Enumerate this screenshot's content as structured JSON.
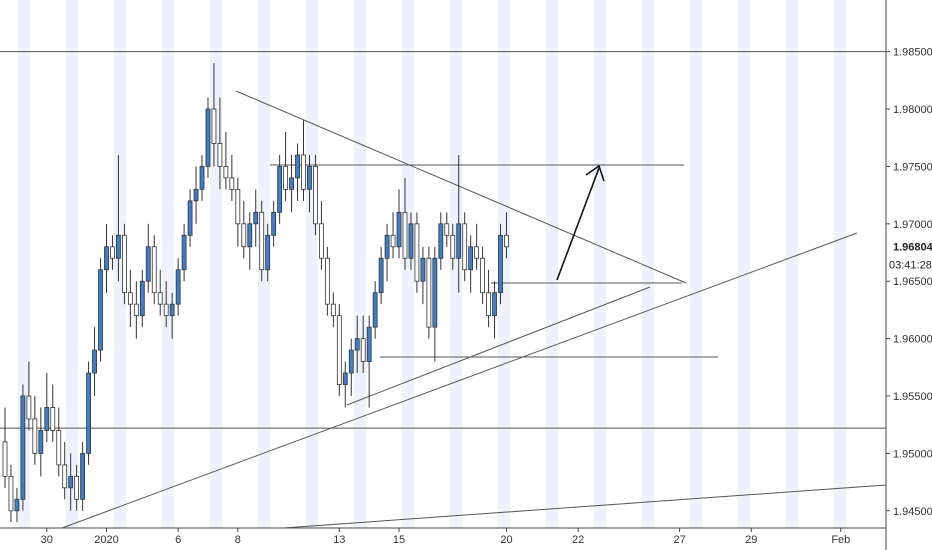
{
  "chart_data": {
    "type": "candlestick",
    "title": "",
    "ylim": [
      1.9435,
      1.9895
    ],
    "y_ticks": [
      1.945,
      1.95,
      1.955,
      1.96,
      1.965,
      1.97,
      1.975,
      1.98,
      1.985
    ],
    "y_tick_labels": [
      "1.94500",
      "1.95000",
      "1.95500",
      "1.96000",
      "1.96500",
      "1.97000",
      "1.97500",
      "1.98000",
      "1.98500"
    ],
    "x_tick_labels": [
      "30",
      "2020",
      "6",
      "8",
      "13",
      "15",
      "20",
      "22",
      "27",
      "29",
      "Feb"
    ],
    "x_tick_index": [
      7,
      17,
      29,
      39,
      56,
      66,
      84,
      96,
      113,
      125,
      140
    ],
    "last_price": "1.96804",
    "countdown": "03:41:28",
    "horizontal_levels": [
      1.985,
      1.9522
    ],
    "colors": {
      "up_fill": "#3d7ec9",
      "down_fill": "#ffffff",
      "candle_border": "#333333",
      "lines": "#555555",
      "bands": "#eef3fb"
    },
    "candles": [
      [
        1.951,
        1.954,
        1.947,
        1.948
      ],
      [
        1.948,
        1.949,
        1.944,
        1.945
      ],
      [
        1.945,
        1.947,
        1.944,
        1.946
      ],
      [
        1.946,
        1.956,
        1.945,
        1.955
      ],
      [
        1.955,
        1.958,
        1.952,
        1.953
      ],
      [
        1.953,
        1.955,
        1.949,
        1.95
      ],
      [
        1.95,
        1.954,
        1.948,
        1.952
      ],
      [
        1.952,
        1.957,
        1.951,
        1.954
      ],
      [
        1.954,
        1.956,
        1.951,
        1.952
      ],
      [
        1.952,
        1.954,
        1.948,
        1.949
      ],
      [
        1.949,
        1.951,
        1.946,
        1.947
      ],
      [
        1.947,
        1.95,
        1.945,
        1.948
      ],
      [
        1.948,
        1.949,
        1.945,
        1.946
      ],
      [
        1.946,
        1.951,
        1.945,
        1.95
      ],
      [
        1.95,
        1.958,
        1.949,
        1.957
      ],
      [
        1.957,
        1.961,
        1.955,
        1.959
      ],
      [
        1.959,
        1.967,
        1.958,
        1.966
      ],
      [
        1.966,
        1.97,
        1.964,
        1.968
      ],
      [
        1.968,
        1.969,
        1.966,
        1.967
      ],
      [
        1.967,
        1.976,
        1.965,
        1.969
      ],
      [
        1.969,
        1.97,
        1.963,
        1.964
      ],
      [
        1.964,
        1.966,
        1.961,
        1.963
      ],
      [
        1.963,
        1.965,
        1.96,
        1.962
      ],
      [
        1.962,
        1.966,
        1.961,
        1.965
      ],
      [
        1.965,
        1.97,
        1.964,
        1.968
      ],
      [
        1.968,
        1.969,
        1.963,
        1.964
      ],
      [
        1.964,
        1.966,
        1.962,
        1.963
      ],
      [
        1.963,
        1.965,
        1.961,
        1.962
      ],
      [
        1.962,
        1.964,
        1.96,
        1.963
      ],
      [
        1.963,
        1.967,
        1.962,
        1.966
      ],
      [
        1.966,
        1.97,
        1.965,
        1.969
      ],
      [
        1.969,
        1.973,
        1.968,
        1.972
      ],
      [
        1.972,
        1.975,
        1.97,
        1.973
      ],
      [
        1.973,
        1.976,
        1.972,
        1.975
      ],
      [
        1.975,
        1.981,
        1.974,
        1.98
      ],
      [
        1.98,
        1.984,
        1.975,
        1.977
      ],
      [
        1.977,
        1.981,
        1.973,
        1.975
      ],
      [
        1.975,
        1.978,
        1.973,
        1.974
      ],
      [
        1.974,
        1.976,
        1.972,
        1.973
      ],
      [
        1.973,
        1.974,
        1.968,
        1.97
      ],
      [
        1.97,
        1.972,
        1.967,
        1.968
      ],
      [
        1.968,
        1.971,
        1.966,
        1.97
      ],
      [
        1.97,
        1.973,
        1.968,
        1.971
      ],
      [
        1.971,
        1.972,
        1.965,
        1.966
      ],
      [
        1.966,
        1.97,
        1.965,
        1.969
      ],
      [
        1.969,
        1.972,
        1.968,
        1.971
      ],
      [
        1.971,
        1.976,
        1.97,
        1.975
      ],
      [
        1.975,
        1.978,
        1.972,
        1.973
      ],
      [
        1.973,
        1.976,
        1.971,
        1.974
      ],
      [
        1.974,
        1.977,
        1.972,
        1.976
      ],
      [
        1.976,
        1.979,
        1.972,
        1.973
      ],
      [
        1.973,
        1.976,
        1.971,
        1.975
      ],
      [
        1.975,
        1.976,
        1.969,
        1.97
      ],
      [
        1.97,
        1.972,
        1.966,
        1.967
      ],
      [
        1.967,
        1.968,
        1.962,
        1.963
      ],
      [
        1.963,
        1.964,
        1.961,
        1.962
      ],
      [
        1.962,
        1.963,
        1.955,
        1.956
      ],
      [
        1.956,
        1.958,
        1.954,
        1.957
      ],
      [
        1.957,
        1.96,
        1.955,
        1.959
      ],
      [
        1.959,
        1.962,
        1.957,
        1.96
      ],
      [
        1.96,
        1.962,
        1.957,
        1.958
      ],
      [
        1.958,
        1.962,
        1.954,
        1.961
      ],
      [
        1.961,
        1.965,
        1.96,
        1.964
      ],
      [
        1.964,
        1.968,
        1.963,
        1.967
      ],
      [
        1.967,
        1.97,
        1.965,
        1.969
      ],
      [
        1.969,
        1.971,
        1.967,
        1.968
      ],
      [
        1.968,
        1.973,
        1.967,
        1.971
      ],
      [
        1.971,
        1.974,
        1.966,
        1.967
      ],
      [
        1.967,
        1.971,
        1.966,
        1.97
      ],
      [
        1.97,
        1.971,
        1.964,
        1.965
      ],
      [
        1.965,
        1.968,
        1.963,
        1.967
      ],
      [
        1.967,
        1.968,
        1.96,
        1.961
      ],
      [
        1.961,
        1.968,
        1.958,
        1.967
      ],
      [
        1.967,
        1.971,
        1.966,
        1.97
      ],
      [
        1.97,
        1.971,
        1.968,
        1.969
      ],
      [
        1.969,
        1.97,
        1.966,
        1.967
      ],
      [
        1.967,
        1.976,
        1.964,
        1.97
      ],
      [
        1.97,
        1.971,
        1.965,
        1.966
      ],
      [
        1.966,
        1.969,
        1.964,
        1.968
      ],
      [
        1.968,
        1.97,
        1.966,
        1.967
      ],
      [
        1.967,
        1.968,
        1.963,
        1.964
      ],
      [
        1.964,
        1.966,
        1.961,
        1.962
      ],
      [
        1.962,
        1.965,
        1.96,
        1.964
      ],
      [
        1.964,
        1.97,
        1.963,
        1.969
      ],
      [
        1.969,
        1.971,
        1.967,
        1.968
      ]
    ]
  }
}
